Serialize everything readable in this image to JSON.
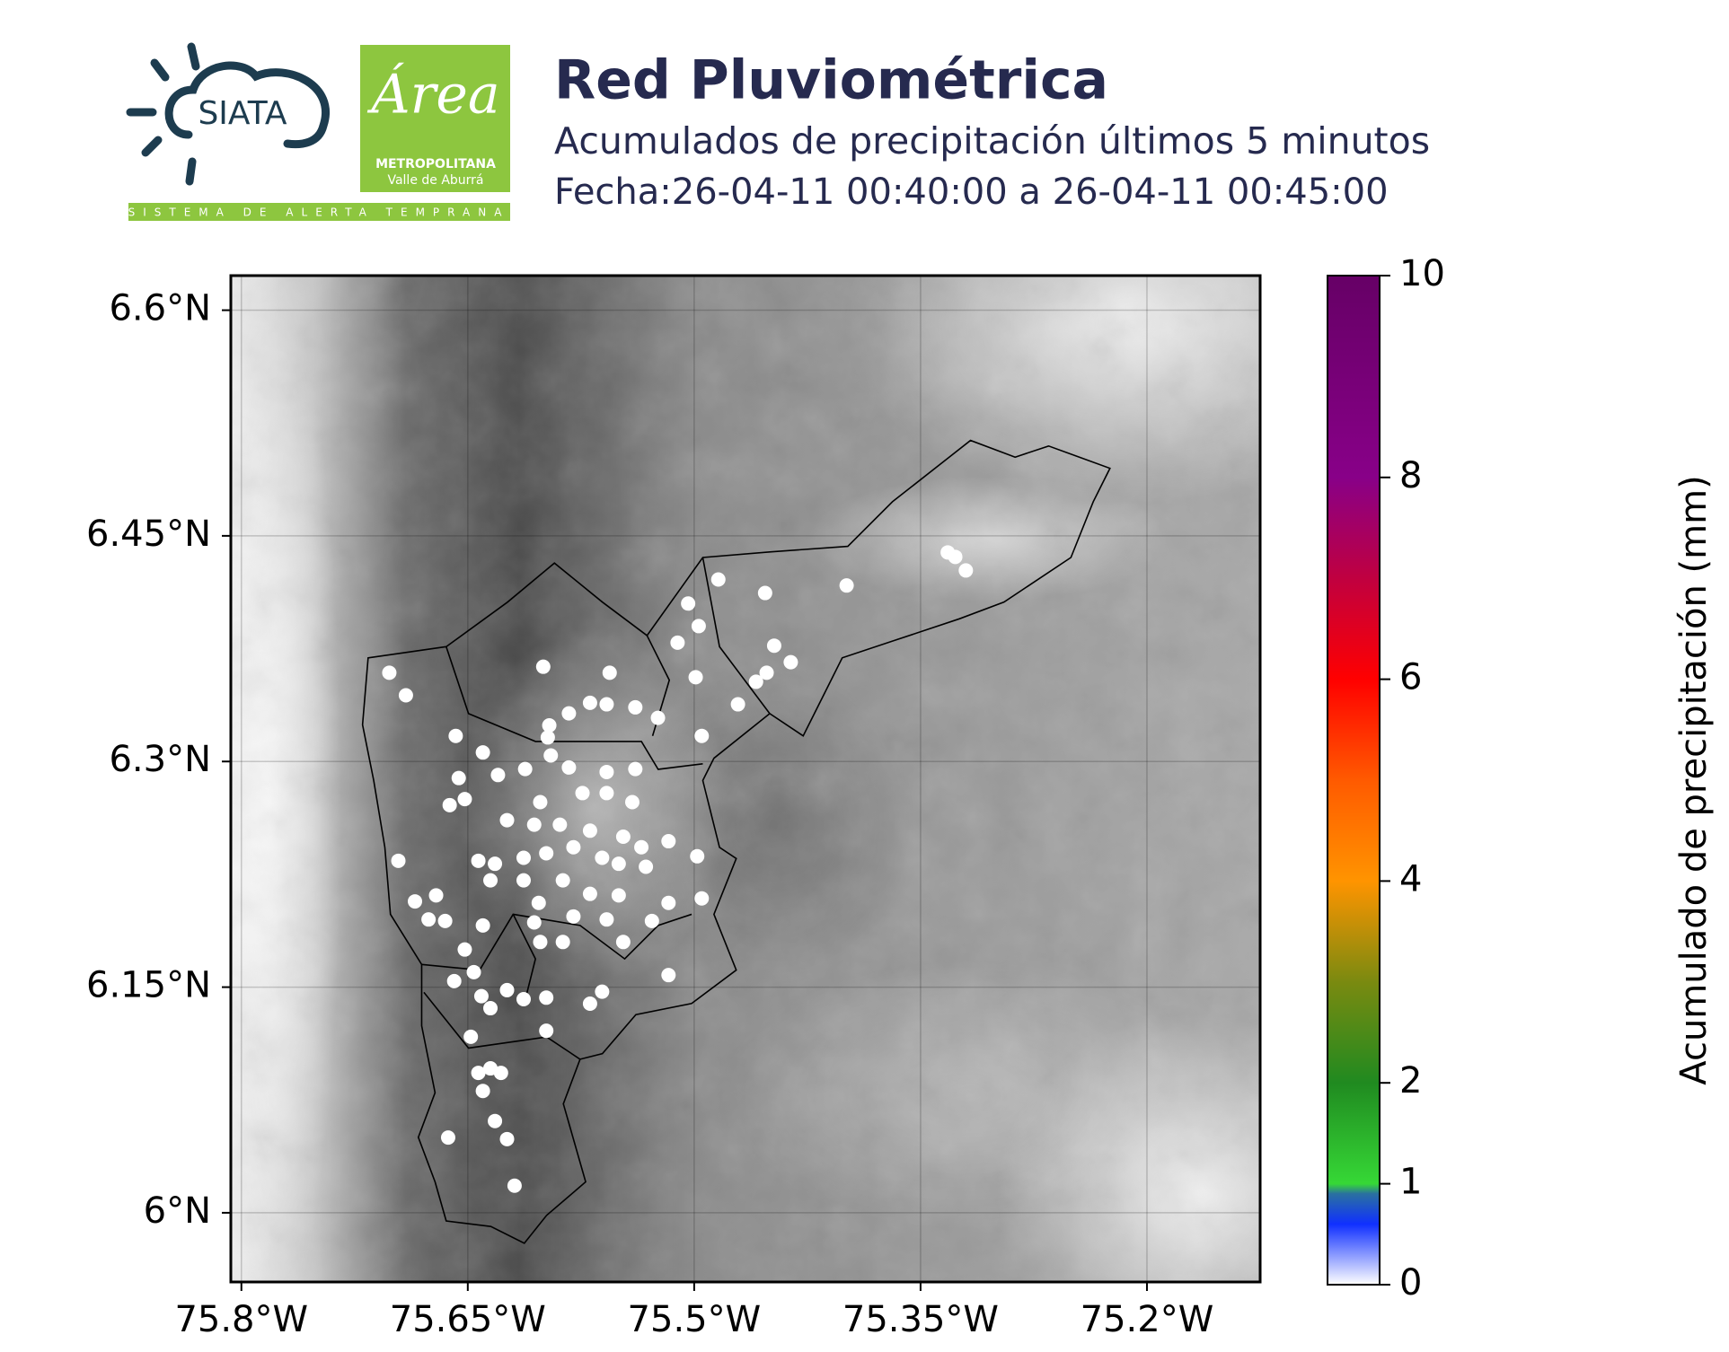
{
  "header": {
    "logo_siata": "SIATA",
    "logo_area": "Área",
    "logo_metro": "METROPOLITANA",
    "logo_valle": "Valle de Aburrá",
    "logo_strip": "SISTEMA DE ALERTA TEMPRANA",
    "title": "Red Pluviométrica",
    "subtitle": "Acumulados de precipitación últimos 5 minutos",
    "date": "Fecha:26-04-11 00:40:00 a 26-04-11 00:45:00"
  },
  "chart_data": {
    "type": "scatter",
    "xlim": [
      -75.807,
      -75.125
    ],
    "ylim": [
      5.954,
      6.623
    ],
    "grid": true,
    "xticks": [
      {
        "value": -75.8,
        "label": "75.8°W"
      },
      {
        "value": -75.65,
        "label": "75.65°W"
      },
      {
        "value": -75.5,
        "label": "75.5°W"
      },
      {
        "value": -75.35,
        "label": "75.35°W"
      },
      {
        "value": -75.2,
        "label": "75.2°W"
      }
    ],
    "yticks": [
      {
        "value": 6.6,
        "label": "6.6°N"
      },
      {
        "value": 6.45,
        "label": "6.45°N"
      },
      {
        "value": 6.3,
        "label": "6.3°N"
      },
      {
        "value": 6.15,
        "label": "6.15°N"
      },
      {
        "value": 6,
        "label": "6°N"
      }
    ],
    "x": [
      -75.702,
      -75.691,
      -75.6,
      -75.556,
      -75.504,
      -75.497,
      -75.511,
      -75.484,
      -75.453,
      -75.447,
      -75.436,
      -75.452,
      -75.459,
      -75.471,
      -75.499,
      -75.495,
      -75.524,
      -75.539,
      -75.558,
      -75.569,
      -75.583,
      -75.596,
      -75.597,
      -75.658,
      -75.64,
      -75.612,
      -75.63,
      -75.656,
      -75.662,
      -75.652,
      -75.595,
      -75.583,
      -75.558,
      -75.539,
      -75.574,
      -75.558,
      -75.541,
      -75.602,
      -75.624,
      -75.606,
      -75.589,
      -75.569,
      -75.547,
      -75.535,
      -75.517,
      -75.498,
      -75.696,
      -75.643,
      -75.632,
      -75.613,
      -75.598,
      -75.58,
      -75.561,
      -75.55,
      -75.532,
      -75.635,
      -75.613,
      -75.587,
      -75.569,
      -75.55,
      -75.517,
      -75.495,
      -75.685,
      -75.671,
      -75.676,
      -75.665,
      -75.64,
      -75.603,
      -75.58,
      -75.558,
      -75.528,
      -75.652,
      -75.606,
      -75.602,
      -75.587,
      -75.547,
      -75.517,
      -75.659,
      -75.646,
      -75.641,
      -75.635,
      -75.624,
      -75.613,
      -75.598,
      -75.561,
      -75.569,
      -75.648,
      -75.598,
      -75.643,
      -75.635,
      -75.628,
      -75.64,
      -75.632,
      -75.624,
      -75.663,
      -75.619,
      -75.399,
      -75.332,
      -75.327,
      -75.32
    ],
    "y": [
      6.359,
      6.344,
      6.363,
      6.359,
      6.405,
      6.39,
      6.379,
      6.421,
      6.412,
      6.377,
      6.366,
      6.359,
      6.353,
      6.338,
      6.356,
      6.317,
      6.329,
      6.336,
      6.338,
      6.339,
      6.332,
      6.324,
      6.316,
      6.317,
      6.306,
      6.295,
      6.291,
      6.289,
      6.271,
      6.275,
      6.304,
      6.296,
      6.293,
      6.295,
      6.279,
      6.279,
      6.273,
      6.273,
      6.261,
      6.258,
      6.258,
      6.254,
      6.25,
      6.243,
      6.247,
      6.237,
      6.234,
      6.234,
      6.232,
      6.236,
      6.239,
      6.243,
      6.236,
      6.232,
      6.23,
      6.221,
      6.221,
      6.221,
      6.212,
      6.211,
      6.206,
      6.209,
      6.207,
      6.211,
      6.195,
      6.194,
      6.191,
      6.206,
      6.197,
      6.195,
      6.194,
      6.175,
      6.193,
      6.18,
      6.18,
      6.18,
      6.158,
      6.154,
      6.16,
      6.144,
      6.136,
      6.148,
      6.142,
      6.143,
      6.147,
      6.139,
      6.117,
      6.121,
      6.093,
      6.096,
      6.093,
      6.081,
      6.061,
      6.049,
      6.05,
      6.018,
      6.417,
      6.439,
      6.436,
      6.427
    ],
    "values": [
      0,
      0,
      0,
      0,
      0,
      0,
      0,
      0,
      0,
      0,
      0,
      0,
      0,
      0,
      0,
      0,
      0,
      0,
      0,
      0,
      0,
      0,
      0,
      0,
      0,
      0,
      0,
      0,
      0,
      0,
      0,
      0,
      0,
      0,
      0,
      0,
      0,
      0,
      0,
      0,
      0,
      0,
      0,
      0,
      0,
      0,
      0,
      0,
      0,
      0,
      0,
      0,
      0,
      0,
      0,
      0,
      0,
      0,
      0,
      0,
      0,
      0,
      0,
      0,
      0,
      0,
      0,
      0,
      0,
      0,
      0,
      0,
      0,
      0,
      0,
      0,
      0,
      0,
      0,
      0,
      0,
      0,
      0,
      0,
      0,
      0,
      0,
      0,
      0,
      0,
      0,
      0,
      0,
      0,
      0,
      0,
      0,
      0,
      0,
      0
    ],
    "colorbar": {
      "label": "Acumulado de precipitación (mm)",
      "ylim": [
        0,
        10
      ],
      "yticks": [
        0,
        1,
        2,
        4,
        6,
        8,
        10
      ],
      "colormap": [
        {
          "value": 0,
          "color": "#ffffff"
        },
        {
          "value": 0.6,
          "color": "#1030ff"
        },
        {
          "value": 0.9,
          "color": "#2a70a0"
        },
        {
          "value": 1,
          "color": "#36d836"
        },
        {
          "value": 2,
          "color": "#208a20"
        },
        {
          "value": 3,
          "color": "#7a8a10"
        },
        {
          "value": 4,
          "color": "#ff9400"
        },
        {
          "value": 5,
          "color": "#ff5a00"
        },
        {
          "value": 6,
          "color": "#ff0000"
        },
        {
          "value": 7,
          "color": "#c00040"
        },
        {
          "value": 8,
          "color": "#880088"
        },
        {
          "value": 10,
          "color": "#660066"
        }
      ]
    }
  }
}
